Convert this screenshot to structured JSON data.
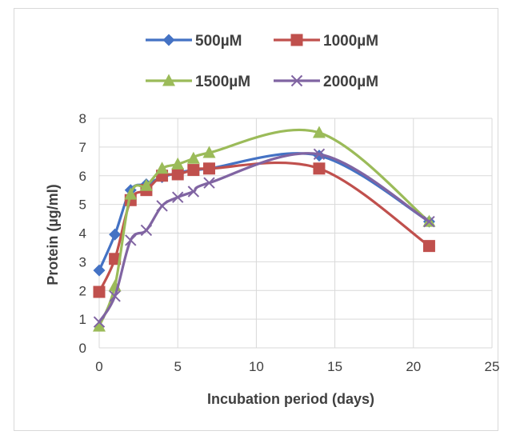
{
  "chart_data": {
    "type": "line",
    "title": "",
    "xlabel": "Incubation period (days)",
    "ylabel": "Protein (µg/ml)",
    "xlim": [
      0,
      25
    ],
    "ylim": [
      0,
      8
    ],
    "xticks": [
      "0",
      "5",
      "10",
      "15",
      "20",
      "25"
    ],
    "yticks": [
      "0",
      "1",
      "2",
      "3",
      "4",
      "5",
      "6",
      "7",
      "8"
    ],
    "grid": true,
    "legend_position": "top",
    "x": [
      0,
      1,
      2,
      3,
      4,
      5,
      6,
      7,
      14,
      21
    ],
    "series": [
      {
        "name": "500µM",
        "color": "#4472c4",
        "marker": "diamond",
        "values": [
          2.7,
          3.95,
          5.5,
          5.7,
          5.95,
          6.1,
          6.2,
          6.25,
          6.7,
          4.4
        ]
      },
      {
        "name": "1000µM",
        "color": "#c0504d",
        "marker": "square",
        "values": [
          1.95,
          3.1,
          5.15,
          5.5,
          6.0,
          6.05,
          6.2,
          6.25,
          6.25,
          3.55
        ]
      },
      {
        "name": "1500µM",
        "color": "#9bbb59",
        "marker": "triangle",
        "values": [
          0.75,
          2.15,
          5.35,
          5.65,
          6.25,
          6.4,
          6.6,
          6.8,
          7.5,
          4.4
        ]
      },
      {
        "name": "2000µM",
        "color": "#8064a2",
        "marker": "x",
        "values": [
          0.9,
          1.8,
          3.75,
          4.1,
          4.95,
          5.25,
          5.45,
          5.75,
          6.75,
          4.4
        ]
      }
    ]
  }
}
